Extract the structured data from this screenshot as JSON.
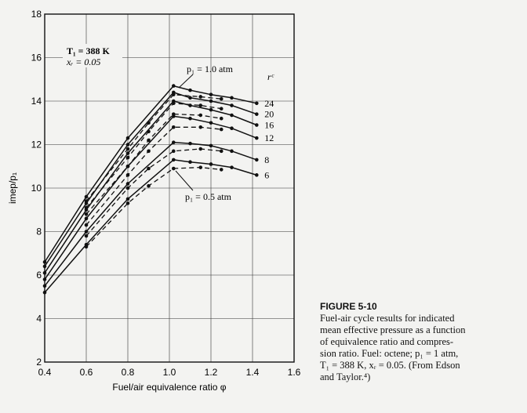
{
  "chart_data": {
    "type": "line",
    "xlabel": "Fuel/air equivalence ratio φ",
    "ylabel": "imep/p₁",
    "xlim": [
      0.4,
      1.6
    ],
    "ylim": [
      2,
      18
    ],
    "xticks": [
      0.4,
      0.6,
      0.8,
      1.0,
      1.2,
      1.4,
      1.6
    ],
    "xtick_labels": [
      "0.4",
      "0.6",
      "0.8",
      "1.0",
      "1.2",
      "1.4",
      "1.6"
    ],
    "yticks": [
      2,
      4,
      6,
      8,
      10,
      12,
      14,
      16,
      18
    ],
    "ytick_labels": [
      "2",
      "4",
      "6",
      "8",
      "10",
      "12",
      "14",
      "16",
      "18"
    ],
    "grid": true,
    "conditions": {
      "T1": "T₁ = 388 K",
      "xr": "xᵣ = 0.05"
    },
    "rc_header": "rᶜ",
    "annotations": {
      "p1_high": "p₁ = 1.0 atm",
      "p1_low": "p₁ = 0.5 atm"
    },
    "series": [
      {
        "name": "24",
        "pressure": "1.0 atm",
        "x": [
          0.4,
          0.6,
          0.8,
          1.02,
          1.1,
          1.2,
          1.3,
          1.42
        ],
        "y": [
          6.6,
          9.6,
          12.3,
          14.7,
          14.5,
          14.3,
          14.15,
          13.9
        ]
      },
      {
        "name": "20",
        "pressure": "1.0 atm",
        "x": [
          0.4,
          0.6,
          0.8,
          1.02,
          1.1,
          1.2,
          1.3,
          1.42
        ],
        "y": [
          6.4,
          9.3,
          12.0,
          14.4,
          14.15,
          14.0,
          13.8,
          13.4
        ]
      },
      {
        "name": "16",
        "pressure": "1.0 atm",
        "x": [
          0.4,
          0.6,
          0.8,
          1.02,
          1.1,
          1.2,
          1.3,
          1.42
        ],
        "y": [
          6.1,
          9.0,
          11.6,
          14.0,
          13.8,
          13.6,
          13.35,
          12.9
        ]
      },
      {
        "name": "12",
        "pressure": "1.0 atm",
        "x": [
          0.4,
          0.6,
          0.8,
          1.02,
          1.1,
          1.2,
          1.3,
          1.42
        ],
        "y": [
          5.8,
          8.6,
          11.0,
          13.3,
          13.2,
          13.0,
          12.75,
          12.3
        ]
      },
      {
        "name": "8",
        "pressure": "1.0 atm",
        "x": [
          0.4,
          0.6,
          0.8,
          1.02,
          1.1,
          1.2,
          1.3,
          1.42
        ],
        "y": [
          5.5,
          8.0,
          10.2,
          12.1,
          12.05,
          11.95,
          11.7,
          11.3
        ]
      },
      {
        "name": "6",
        "pressure": "1.0 atm",
        "x": [
          0.4,
          0.6,
          0.8,
          1.02,
          1.1,
          1.2,
          1.3,
          1.42
        ],
        "y": [
          5.2,
          7.4,
          9.5,
          11.3,
          11.2,
          11.1,
          10.95,
          10.6
        ]
      },
      {
        "name": "24",
        "pressure": "0.5 atm",
        "x": [
          0.6,
          0.8,
          0.9,
          1.02,
          1.15,
          1.25
        ],
        "y": [
          9.4,
          11.8,
          13.0,
          14.3,
          14.2,
          14.1
        ]
      },
      {
        "name": "20",
        "pressure": "0.5 atm",
        "x": [
          0.6,
          0.8,
          0.9,
          1.02,
          1.15,
          1.25
        ],
        "y": [
          9.1,
          11.4,
          12.6,
          13.9,
          13.8,
          13.65
        ]
      },
      {
        "name": "16",
        "pressure": "0.5 atm",
        "x": [
          0.6,
          0.8,
          0.9,
          1.02,
          1.15,
          1.25
        ],
        "y": [
          8.8,
          11.0,
          12.2,
          13.4,
          13.35,
          13.2
        ]
      },
      {
        "name": "12",
        "pressure": "0.5 atm",
        "x": [
          0.6,
          0.8,
          0.9,
          1.02,
          1.15,
          1.25
        ],
        "y": [
          8.3,
          10.6,
          11.7,
          12.8,
          12.8,
          12.7
        ]
      },
      {
        "name": "8",
        "pressure": "0.5 atm",
        "x": [
          0.6,
          0.8,
          0.9,
          1.02,
          1.15,
          1.25
        ],
        "y": [
          7.8,
          10.0,
          10.9,
          11.7,
          11.8,
          11.7
        ]
      },
      {
        "name": "6",
        "pressure": "0.5 atm",
        "x": [
          0.6,
          0.8,
          0.9,
          1.02,
          1.15,
          1.25
        ],
        "y": [
          7.3,
          9.3,
          10.1,
          10.9,
          10.95,
          10.85
        ]
      }
    ]
  },
  "caption": {
    "title": "FIGURE 5-10",
    "line1": "Fuel-air cycle results for indicated",
    "line2": "mean effective pressure as a function",
    "line3": "of equivalence ratio and compres-",
    "line4": "sion ratio. Fuel: octene; p₁ = 1 atm,",
    "line5": "T₁ = 388 K, xᵣ = 0.05. (From Edson",
    "line6": "and Taylor.⁴)"
  }
}
